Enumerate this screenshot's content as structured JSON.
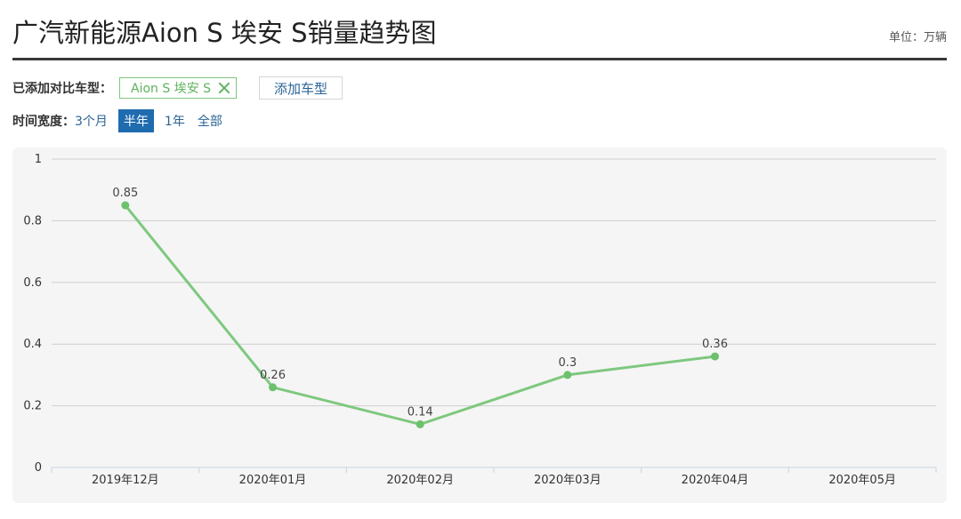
{
  "header": {
    "title": "广汽新能源Aion S 埃安 S销量趋势图",
    "unit": "单位：万辆"
  },
  "compare": {
    "label": "已添加对比车型：",
    "selected_model": "Aion S 埃安 S",
    "add_button": "添加车型"
  },
  "time_range": {
    "label": "时间宽度：",
    "options": [
      "3个月",
      "半年",
      "1年",
      "全部"
    ],
    "active": "半年"
  },
  "colors": {
    "line": "#7ec87e",
    "point": "#6cc16c",
    "active_range": "#1f6bb0",
    "link": "#2a6496"
  },
  "chart_data": {
    "type": "line",
    "categories": [
      "2019年12月",
      "2020年01月",
      "2020年02月",
      "2020年03月",
      "2020年04月",
      "2020年05月"
    ],
    "values": [
      0.85,
      0.26,
      0.14,
      0.3,
      0.36,
      null
    ],
    "data_labels": [
      "0.85",
      "0.26",
      "0.14",
      "0.3",
      "0.36",
      ""
    ],
    "y_ticks": [
      "0",
      "0.2",
      "0.4",
      "0.6",
      "0.8",
      "1"
    ],
    "ylim": [
      0,
      1
    ],
    "grid": true,
    "title": "",
    "xlabel": "",
    "ylabel": ""
  }
}
